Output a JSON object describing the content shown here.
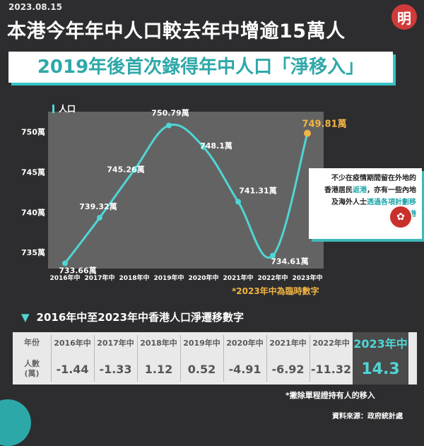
{
  "date": "2023.08.15",
  "logo_char": "明",
  "headline": "本港今年年中人口較去年中增逾15萬人",
  "subheadline": "2019年後首次錄得年中人口「淨移入」",
  "legend_label": "人口",
  "chart_data": {
    "type": "line",
    "ylabel": "人口",
    "categories": [
      "2016年中",
      "2017年中",
      "2018年中",
      "2019年中",
      "2020年中",
      "2021年中",
      "2022年中",
      "2023年中"
    ],
    "values": [
      733.66,
      739.32,
      745.26,
      750.79,
      748.1,
      741.31,
      734.61,
      749.81
    ],
    "value_labels": [
      "733.66萬",
      "739.32萬",
      "745.26萬",
      "750.79萬",
      "748.1萬",
      "741.31萬",
      "734.61萬",
      "749.81萬"
    ],
    "yticks": [
      735,
      740,
      745,
      750
    ],
    "ytick_labels": [
      "735萬",
      "740萬",
      "745萬",
      "750萬"
    ],
    "ylim": [
      733,
      752.5
    ],
    "highlight_index": 7,
    "colors": {
      "line": "#4fd6d4",
      "marker": "#4fd6d4",
      "highlight": "#f2b544",
      "label": "#ffffff"
    }
  },
  "note_box": {
    "line1": "不少在疫情期間留在外地的",
    "line2a": "香港居民",
    "line2b": "返港",
    "line2c": "，亦有一些內地",
    "line3a": "及海外人士",
    "line3b": "透過各項計劃移",
    "line4": "入香港"
  },
  "temp_note": "*2023年中為臨時數字",
  "section_title": "2016年中至2023年中香港人口淨遷移數字",
  "table": {
    "head_label": "年份",
    "row_label": "人數\n(萬)",
    "years": [
      "2016年中",
      "2017年中",
      "2018年中",
      "2019年中",
      "2020年中",
      "2021年中",
      "2022年中"
    ],
    "values": [
      "-1.44",
      "-1.33",
      "1.12",
      "0.52",
      "-4.91",
      "-6.92",
      "-11.32"
    ],
    "highlight_year": "2023年中",
    "highlight_value": "14.3"
  },
  "excl_note": "*撇除單程證持有人的移入",
  "source": "資料來源：政府統計處"
}
